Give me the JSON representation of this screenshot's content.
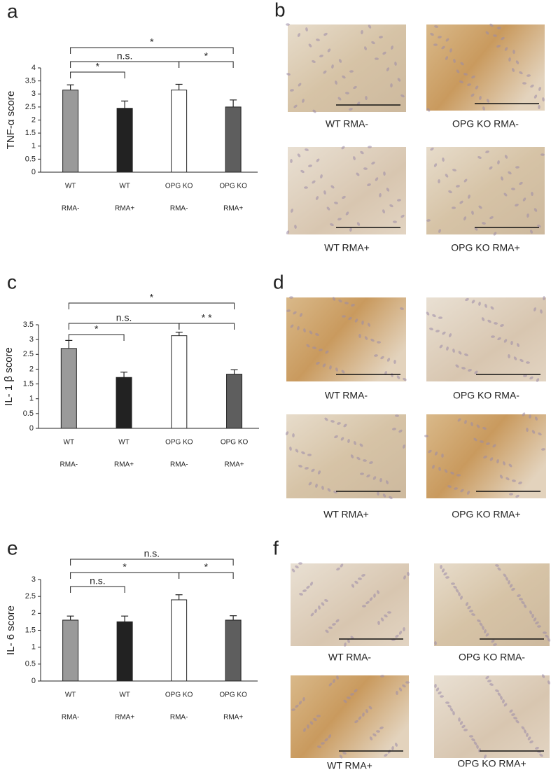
{
  "chart_data": [
    {
      "type": "bar",
      "panel_label": "a",
      "y_label": "TNF-α score",
      "categories": [
        [
          "WT",
          "RMA-"
        ],
        [
          "WT",
          "RMA+"
        ],
        [
          "OPG KO",
          "RMA-"
        ],
        [
          "OPG KO",
          "RMA+"
        ]
      ],
      "values": [
        3.15,
        2.45,
        3.15,
        2.5
      ],
      "errors": [
        0.2,
        0.28,
        0.22,
        0.27
      ],
      "colors": [
        "#9a9a9a",
        "#222222",
        "#ffffff",
        "#5e5e5e"
      ],
      "ylim": [
        0,
        4
      ],
      "yticks": [
        0,
        0.5,
        1,
        1.5,
        2,
        2.5,
        3,
        3.5,
        4
      ],
      "annotations": [
        {
          "text": "*",
          "between": [
            0,
            3
          ]
        },
        {
          "text": "n.s.",
          "between": [
            0,
            2
          ]
        },
        {
          "text": "*",
          "between": [
            2,
            3
          ]
        },
        {
          "text": "*",
          "between": [
            0,
            1
          ]
        }
      ]
    },
    {
      "type": "bar",
      "panel_label": "c",
      "y_label": "IL- 1 β score",
      "categories": [
        [
          "WT",
          "RMA-"
        ],
        [
          "WT",
          "RMA+"
        ],
        [
          "OPG KO",
          "RMA-"
        ],
        [
          "OPG KO",
          "RMA+"
        ]
      ],
      "values": [
        2.7,
        1.72,
        3.13,
        1.83
      ],
      "errors": [
        0.27,
        0.18,
        0.12,
        0.15
      ],
      "colors": [
        "#9a9a9a",
        "#222222",
        "#ffffff",
        "#5e5e5e"
      ],
      "ylim": [
        0,
        3.5
      ],
      "yticks": [
        0,
        0.5,
        1,
        1.5,
        2,
        2.5,
        3,
        3.5
      ],
      "annotations": [
        {
          "text": "*",
          "between": [
            0,
            3
          ]
        },
        {
          "text": "n.s.",
          "between": [
            0,
            2
          ]
        },
        {
          "text": "* *",
          "between": [
            2,
            3
          ]
        },
        {
          "text": "*",
          "between": [
            0,
            1
          ]
        }
      ]
    },
    {
      "type": "bar",
      "panel_label": "e",
      "y_label": "IL- 6 score",
      "categories": [
        [
          "WT",
          "RMA-"
        ],
        [
          "WT",
          "RMA+"
        ],
        [
          "OPG KO",
          "RMA-"
        ],
        [
          "OPG KO",
          "RMA+"
        ]
      ],
      "values": [
        1.8,
        1.75,
        2.4,
        1.8
      ],
      "errors": [
        0.12,
        0.17,
        0.15,
        0.13
      ],
      "colors": [
        "#9a9a9a",
        "#222222",
        "#ffffff",
        "#5e5e5e"
      ],
      "ylim": [
        0,
        3
      ],
      "yticks": [
        0,
        0.5,
        1,
        1.5,
        2,
        2.5,
        3
      ],
      "annotations": [
        {
          "text": "n.s.",
          "between": [
            0,
            3
          ]
        },
        {
          "text": "*",
          "between": [
            0,
            2
          ]
        },
        {
          "text": "*",
          "between": [
            2,
            3
          ]
        },
        {
          "text": "n.s.",
          "between": [
            0,
            1
          ]
        }
      ]
    }
  ],
  "image_panels": [
    {
      "letter": "b",
      "captions": [
        "WT RMA-",
        "OPG KO RMA-",
        "WT RMA+",
        "OPG KO RMA+"
      ]
    },
    {
      "letter": "d",
      "captions": [
        "WT RMA-",
        "OPG KO RMA-",
        "WT RMA+",
        "OPG KO RMA+"
      ]
    },
    {
      "letter": "f",
      "captions": [
        "WT RMA-",
        "OPG KO RMA-",
        "WT RMA+",
        "OPG KO RMA+"
      ]
    }
  ]
}
